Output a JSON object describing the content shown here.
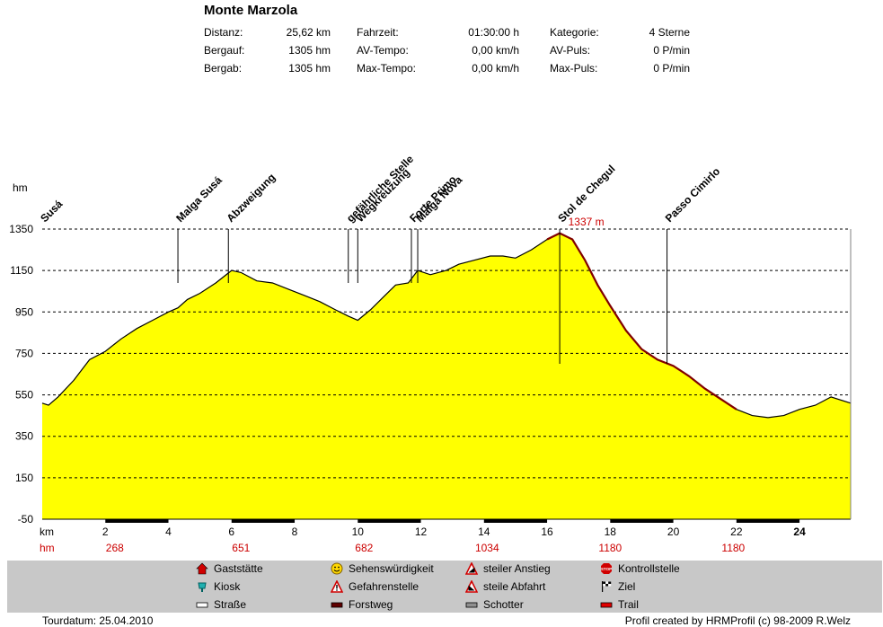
{
  "title": "Monte Marzola",
  "stats": [
    {
      "label": "Distanz:",
      "value": "25,62 km"
    },
    {
      "label": "Bergauf:",
      "value": "1305 hm"
    },
    {
      "label": "Bergab:",
      "value": "1305 hm"
    },
    {
      "label": "Fahrzeit:",
      "value": "01:30:00 h"
    },
    {
      "label": "AV-Tempo:",
      "value": "0,00 km/h"
    },
    {
      "label": "Max-Tempo:",
      "value": "0,00 km/h"
    },
    {
      "label": "Kategorie:",
      "value": "4 Sterne"
    },
    {
      "label": "AV-Puls:",
      "value": "0 P/min"
    },
    {
      "label": "Max-Puls:",
      "value": "0 P/min"
    }
  ],
  "chart_data": {
    "type": "area",
    "ylabel": "hm",
    "xlabel": "km",
    "xlim": [
      0,
      25.62
    ],
    "ylim": [
      -50,
      1350
    ],
    "y_ticks": [
      -50,
      150,
      350,
      550,
      750,
      950,
      1150,
      1350
    ],
    "x_ticks": [
      2,
      4,
      6,
      8,
      10,
      12,
      14,
      16,
      18,
      20,
      22,
      24
    ],
    "grid": "horizontal dashed",
    "fill_color": "#ffff00",
    "steep_color": "#800000",
    "x": [
      0,
      0.2,
      0.5,
      1.0,
      1.5,
      2.0,
      2.5,
      3.0,
      3.5,
      4.0,
      4.3,
      4.6,
      5.0,
      5.5,
      6.0,
      6.3,
      6.8,
      7.3,
      7.8,
      8.3,
      8.8,
      9.3,
      9.7,
      10.0,
      10.4,
      10.8,
      11.2,
      11.6,
      11.9,
      12.3,
      12.8,
      13.2,
      13.7,
      14.2,
      14.6,
      15.0,
      15.5,
      16.0,
      16.4,
      16.8,
      17.2,
      17.6,
      18.0,
      18.5,
      19.0,
      19.5,
      20.0,
      20.5,
      21.0,
      21.5,
      22.0,
      22.5,
      23.0,
      23.5,
      24.0,
      24.5,
      25.0,
      25.62
    ],
    "y": [
      510,
      500,
      540,
      620,
      720,
      760,
      820,
      870,
      910,
      950,
      970,
      1010,
      1040,
      1090,
      1150,
      1140,
      1100,
      1090,
      1060,
      1030,
      1000,
      960,
      930,
      910,
      960,
      1020,
      1080,
      1090,
      1150,
      1130,
      1150,
      1180,
      1200,
      1220,
      1220,
      1210,
      1250,
      1300,
      1330,
      1300,
      1200,
      1080,
      980,
      860,
      770,
      720,
      690,
      640,
      580,
      530,
      480,
      450,
      440,
      450,
      480,
      500,
      540,
      510
    ],
    "steep_ranges": [
      [
        16.0,
        22.0
      ]
    ],
    "peak_label": "1337 m",
    "peak_x": 16.5,
    "waypoints": [
      {
        "name": "Susá",
        "x": 0.0
      },
      {
        "name": "Malga Susá",
        "x": 4.3
      },
      {
        "name": "Abzweigung",
        "x": 5.9
      },
      {
        "name": "gefährliche Stelle",
        "x": 9.7
      },
      {
        "name": "Wegkreuzung",
        "x": 10.0
      },
      {
        "name": "Forte Primo",
        "x": 11.7
      },
      {
        "name": "Malga Nova",
        "x": 11.9
      },
      {
        "name": "Stol de Chegul",
        "x": 16.4
      },
      {
        "name": "Passo Cimirlo",
        "x": 19.8
      }
    ],
    "hm_row_label": "hm",
    "hm_row": [
      {
        "value": "268",
        "x": 2.3
      },
      {
        "value": "651",
        "x": 6.3
      },
      {
        "value": "682",
        "x": 10.2
      },
      {
        "value": "1034",
        "x": 14.1
      },
      {
        "value": "1180",
        "x": 18.0
      },
      {
        "value": "1180",
        "x": 21.9
      }
    ],
    "surface_black_ranges": [
      [
        2,
        4
      ],
      [
        6,
        8
      ],
      [
        10,
        12
      ],
      [
        14,
        16
      ],
      [
        18,
        20
      ],
      [
        22,
        24
      ]
    ]
  },
  "legend": [
    {
      "label": "Gaststätte",
      "icon": "house-icon"
    },
    {
      "label": "Kiosk",
      "icon": "kiosk-icon"
    },
    {
      "label": "Straße",
      "icon": "road-swatch"
    },
    {
      "label": "Sehenswürdigkeit",
      "icon": "smiley-icon"
    },
    {
      "label": "Gefahrenstelle",
      "icon": "warning-icon"
    },
    {
      "label": "Forstweg",
      "icon": "forest-road-swatch"
    },
    {
      "label": "steiler Anstieg",
      "icon": "steep-climb-icon"
    },
    {
      "label": "steile Abfahrt",
      "icon": "steep-descent-icon"
    },
    {
      "label": "Schotter",
      "icon": "gravel-swatch"
    },
    {
      "label": "Kontrollstelle",
      "icon": "stop-icon"
    },
    {
      "label": "Ziel",
      "icon": "finish-flag-icon"
    },
    {
      "label": "Trail",
      "icon": "trail-swatch"
    }
  ],
  "footer": {
    "left": "Tourdatum: 25.04.2010",
    "right": "Profil created by HRMProfil (c) 98-2009 R.Welz"
  }
}
